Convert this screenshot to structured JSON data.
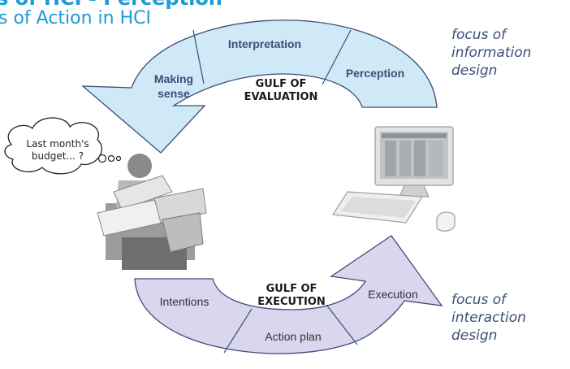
{
  "slide": {
    "title_fragment": "s of HCI - Perception",
    "subtitle_fragment": "s of Action in HCI"
  },
  "evaluation_arc": {
    "segments": [
      "Making sense",
      "Interpretation",
      "Perception"
    ],
    "gulf_label": "GULF OF EVALUATION",
    "color": "#cfe9f7"
  },
  "execution_arc": {
    "segments": [
      "Intentions",
      "Action plan",
      "Execution"
    ],
    "gulf_label": "GULF OF EXECUTION",
    "color": "#d9d6ee"
  },
  "focus_notes": {
    "information": "focus of\ninformation\ndesign",
    "interaction": "focus of\ninteraction\ndesign"
  },
  "thought_bubble": "Last month's budget... ?",
  "illustrations": [
    "person-with-papers",
    "computer-monitor-keyboard-mouse"
  ]
}
